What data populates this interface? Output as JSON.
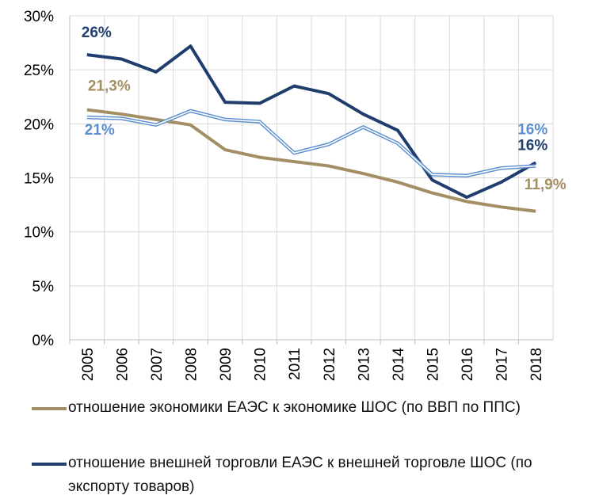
{
  "chart_data": {
    "type": "line",
    "categories": [
      "2005",
      "2006",
      "2007",
      "2008",
      "2009",
      "2010",
      "2011",
      "2012",
      "2013",
      "2014",
      "2015",
      "2016",
      "2017",
      "2018"
    ],
    "series": [
      {
        "name": "отношение экономики ЕАЭС к экономике ШОС (по ВВП по ППС)",
        "color": "#a38f63",
        "values": [
          21.3,
          20.9,
          20.4,
          19.9,
          17.6,
          16.9,
          16.5,
          16.1,
          15.4,
          14.6,
          13.6,
          12.8,
          12.3,
          11.9
        ],
        "value_labels": [
          "21,3%",
          null,
          null,
          null,
          null,
          null,
          null,
          null,
          null,
          null,
          null,
          null,
          null,
          "11,9%"
        ]
      },
      {
        "name": "отношение внешней торговли ЕАЭС к внешней торговле ШОС (по экспорту товаров)",
        "color": "#1f3e6e",
        "values": [
          26.4,
          26.0,
          24.8,
          27.2,
          22.0,
          21.9,
          23.5,
          22.8,
          20.9,
          19.4,
          14.8,
          13.2,
          14.6,
          16.4
        ],
        "value_labels": [
          "26%",
          null,
          null,
          null,
          null,
          null,
          null,
          null,
          null,
          null,
          null,
          null,
          null,
          "16%"
        ]
      },
      {
        "color": "#5b8fd0",
        "style": "double",
        "values": [
          20.6,
          20.5,
          19.9,
          21.2,
          20.4,
          20.2,
          17.3,
          18.1,
          19.7,
          18.2,
          15.3,
          15.2,
          15.9,
          16.1
        ],
        "value_labels": [
          "21%",
          null,
          null,
          null,
          null,
          null,
          null,
          null,
          null,
          null,
          null,
          null,
          null,
          "16%"
        ]
      }
    ],
    "ylim": [
      0,
      30
    ],
    "yticks": [
      {
        "value": 0,
        "label": "0%"
      },
      {
        "value": 5,
        "label": "5%"
      },
      {
        "value": 10,
        "label": "10%"
      },
      {
        "value": 15,
        "label": "15%"
      },
      {
        "value": 20,
        "label": "20%"
      },
      {
        "value": 25,
        "label": "25%"
      },
      {
        "value": 30,
        "label": "30%"
      }
    ],
    "grid": true
  }
}
